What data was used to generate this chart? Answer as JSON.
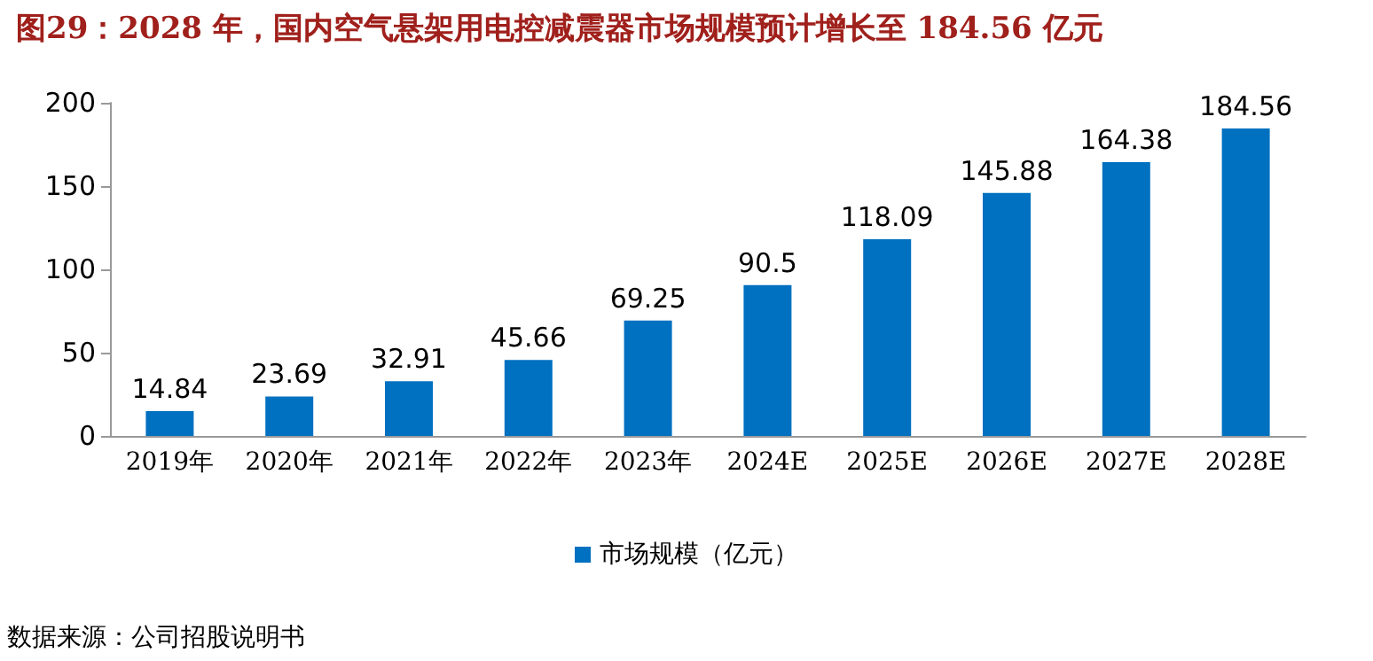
{
  "chart_data": {
    "type": "bar",
    "title": "图29：2028 年，国内空气悬架用电控减震器市场规模预计增长至 184.56 亿元",
    "categories": [
      "2019年",
      "2020年",
      "2021年",
      "2022年",
      "2023年",
      "2024E",
      "2025E",
      "2026E",
      "2027E",
      "2028E"
    ],
    "series": [
      {
        "name": "市场规模（亿元）",
        "color": "#0070c0",
        "values": [
          14.84,
          23.69,
          32.91,
          45.66,
          69.25,
          90.5,
          118.09,
          145.88,
          164.38,
          184.56
        ]
      }
    ],
    "ylim": [
      0,
      200
    ],
    "yticks": [
      0,
      50,
      100,
      150,
      200
    ],
    "grid": false,
    "legend": "bottom",
    "data_labels": true,
    "annotations": [
      "数据来源：公司招股说明书"
    ]
  }
}
